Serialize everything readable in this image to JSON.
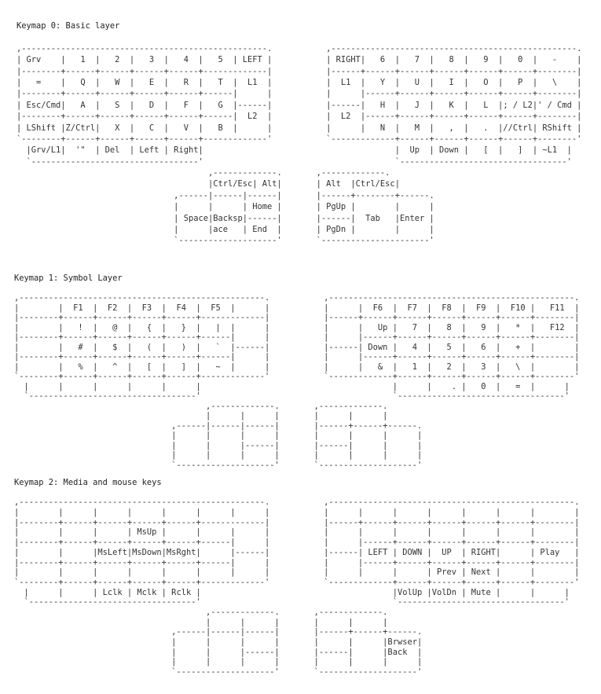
{
  "layers": [
    {
      "title": "Keymap 0: Basic layer",
      "lines": [
        "",
        ",--------------------------------------------------.           ,--------------------------------------------------.",
        "| Grv    |   1  |   2  |   3  |   4  |   5  | LEFT |           | RIGHT|   6  |   7  |   8  |   9  |   0  |   -    |",
        "|--------+------+------+------+------+-------------|           |------+------+------+------+------+------+--------|",
        "|   =    |   Q  |   W  |   E  |   R  |   T  |  L1  |           |  L1  |   Y  |   U  |   I  |   O  |   P  |   \\    |",
        "|--------+------+------+------+------+------|      |           |      |------+------+------+------+------+--------|",
        "| Esc/Cmd|   A  |   S  |   D  |   F  |   G  |------|           |------|   H  |   J  |   K  |   L  |; / L2|' / Cmd |",
        "|--------+------+------+------+------+------|  L2  |           |  L2  |------+------+------+------+------+--------|",
        "| LShift |Z/Ctrl|   X  |   C  |   V  |   B  |      |           |      |   N  |   M  |   ,  |   .  |//Ctrl| RShift |",
        "`--------+------+------+------+------+-------------'           `-------------+------+------+------+------+--------'",
        "  |Grv/L1|  '\"  | Del  | Left | Right|                                       |  Up  | Down |   [  |   ]  | ~L1  |",
        "  `----------------------------------'                                       `----------------------------------'",
        "                                       ,-------------.       ,-------------.",
        "                                       |Ctrl/Esc| Alt|       | Alt  |Ctrl/Esc|",
        "                                ,------|------|------|       |------+--------+------.",
        "                                |      |      | Home |       | PgUp |        |      |",
        "                                | Space|Backsp|------|       |------|  Tab   |Enter |",
        "                                |      |ace   | End  |       | PgDn |        |      |",
        "                                `--------------------'       `----------------------'"
      ]
    },
    {
      "title": "Keymap 1: Symbol Layer",
      "lines": [
        "",
        ",--------------------------------------------------.           ,--------------------------------------------------.",
        "|        |  F1  |  F2  |  F3  |  F4  |  F5  |      |           |      |  F6  |  F7  |  F8  |  F9  |  F10 |   F11  |",
        "|--------+------+------+------+------+-------------|           |------+------+------+------+------+------+--------|",
        "|        |   !  |   @  |   {  |   }  |   |  |      |           |      |   Up |   7  |   8  |   9  |   *  |   F12  |",
        "|--------+------+------+------+------+------|      |           |      |------+------+------+------+------+--------|",
        "|        |   #  |   $  |   (  |   )  |   `  |------|           |------| Down |   4  |   5  |   6  |   +  |        |",
        "|--------+------+------+------+------+------|      |           |      |------+------+------+------+------+--------|",
        "|        |   %  |   ^  |   [  |   ]  |   ~  |      |           |      |   &  |   1  |   2  |   3  |   \\  |        |",
        "`--------+------+------+------+------+-------------'           `-------------+------+------+------+------+--------'",
        "  |      |      |      |      |      |                                       |      |    . |   0  |   =  |      |",
        "  `----------------------------------'                                       `----------------------------------'",
        "                                       ,-------------.       ,-------------.",
        "                                       |      |      |       |      |      |",
        "                                ,------|------|------|       |------+------+------.",
        "                                |      |      |      |       |      |      |      |",
        "                                |      |      |------|       |------|      |      |",
        "                                |      |      |      |       |      |      |      |",
        "                                `--------------------'       `--------------------'"
      ]
    },
    {
      "title": "Keymap 2: Media and mouse keys",
      "lines": [
        "",
        ",--------------------------------------------------.           ,--------------------------------------------------.",
        "|        |      |      |      |      |      |      |           |      |      |      |      |      |      |        |",
        "|--------+------+------+------+------+-------------|           |------+------+------+------+------+------+--------|",
        "|        |      |      | MsUp |      |      |      |           |      |      |      |      |      |      |        |",
        "|--------+------+------+------+------+------|      |           |      |------+------+------+------+------+--------|",
        "|        |      |MsLeft|MsDown|MsRght|      |------|           |------| LEFT | DOWN |  UP  | RIGHT|      | Play   |",
        "|--------+------+------+------+------+------|      |           |      |------+------+------+------+------+--------|",
        "|        |      |      |      |      |      |      |           |      |      |      | Prev | Next |      |        |",
        "`--------+------+------+------+------+-------------'           `-------------+------+------+------+------+--------'",
        "  |      |      | Lclk | Mclk | Rclk |                                       |VolUp |VolDn | Mute |      |      |",
        "  `----------------------------------'                                       `----------------------------------'",
        "                                       ,-------------.       ,-------------.",
        "                                       |      |      |       |      |      |",
        "                                ,------|------|------|       |------+------+------.",
        "                                |      |      |      |       |      |      |Brwser|",
        "                                |      |      |------|       |------|      |Back  |",
        "                                |      |      |      |       |      |      |      |",
        "                                `--------------------'       `--------------------'"
      ]
    }
  ]
}
